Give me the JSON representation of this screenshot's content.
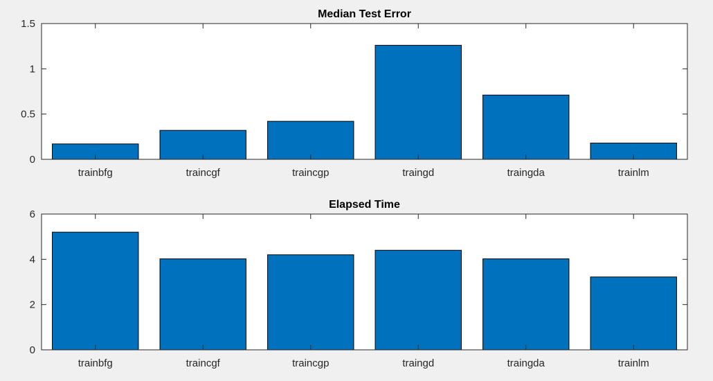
{
  "figure": {
    "background": "#f0f0f0"
  },
  "chart_data": [
    {
      "type": "bar",
      "title": "Median Test Error",
      "xlabel": "",
      "ylabel": "",
      "categories": [
        "trainbfg",
        "traincgf",
        "traincgp",
        "traingd",
        "traingda",
        "trainlm"
      ],
      "values": [
        0.17,
        0.32,
        0.42,
        1.26,
        0.71,
        0.18
      ],
      "ylim": [
        0,
        1.5
      ],
      "yticks": [
        0,
        0.5,
        1,
        1.5
      ],
      "ytick_labels": [
        "0",
        "0.5",
        "1",
        "1.5"
      ],
      "bar_color": "#0072bd",
      "grid": false,
      "legend": "none"
    },
    {
      "type": "bar",
      "title": "Elapsed Time",
      "xlabel": "",
      "ylabel": "",
      "categories": [
        "trainbfg",
        "traincgf",
        "traincgp",
        "traingd",
        "traingda",
        "trainlm"
      ],
      "values": [
        5.2,
        4.02,
        4.2,
        4.4,
        4.02,
        3.22
      ],
      "ylim": [
        0,
        6
      ],
      "yticks": [
        0,
        2,
        4,
        6
      ],
      "ytick_labels": [
        "0",
        "2",
        "4",
        "6"
      ],
      "bar_color": "#0072bd",
      "grid": false,
      "legend": "none"
    }
  ]
}
